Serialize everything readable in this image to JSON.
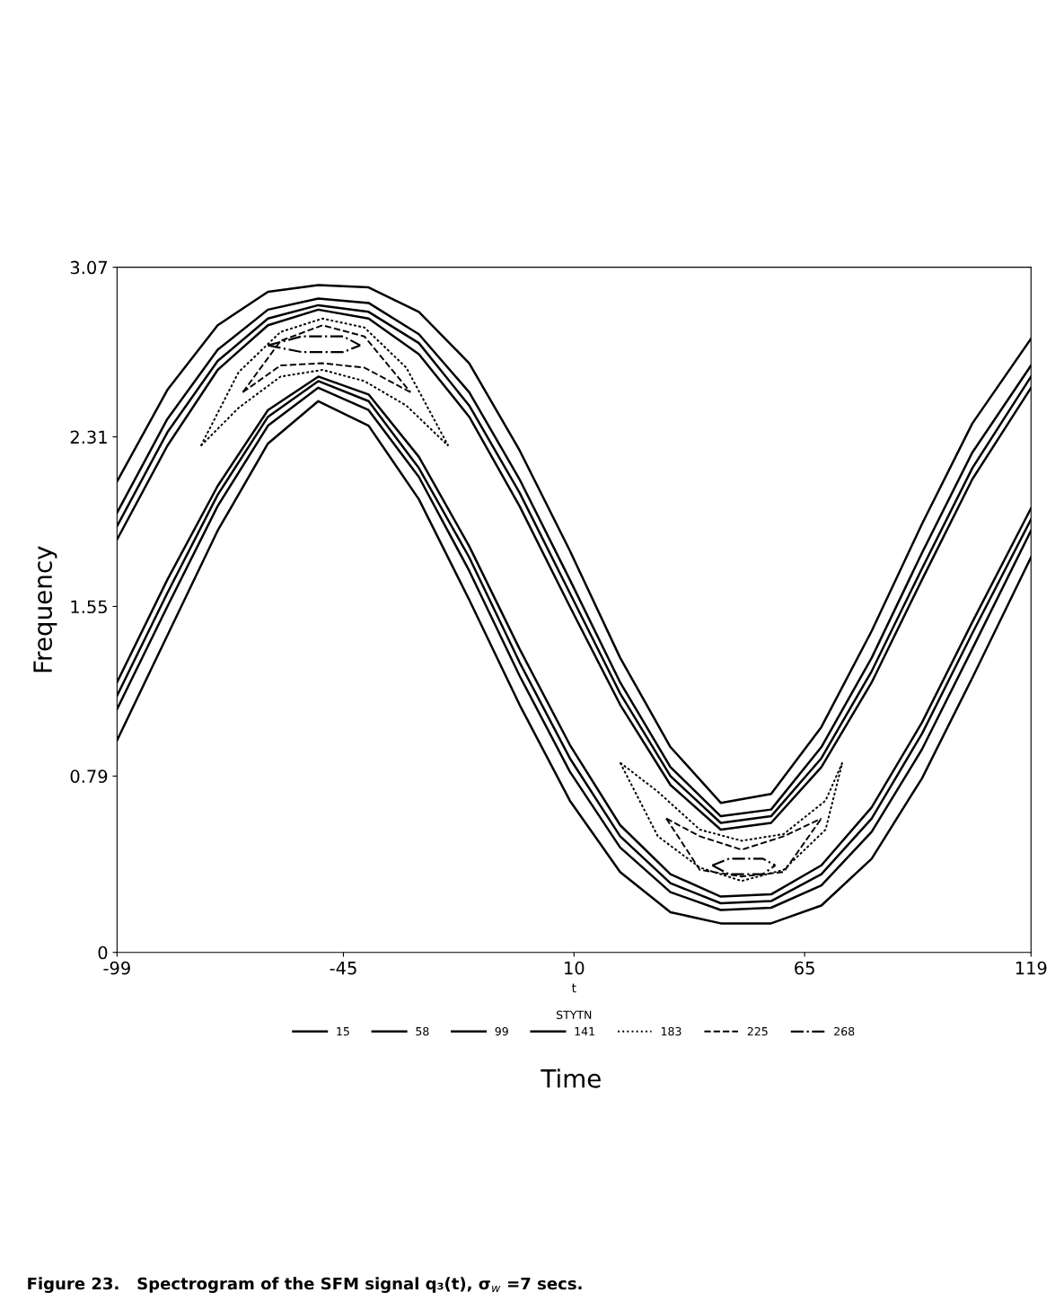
{
  "chart_data": {
    "type": "line",
    "ylabel": "Frequency",
    "xlabel": "t",
    "legend_title": "STYTN",
    "legend": "bottom",
    "grid": false,
    "xlim": [
      -99,
      119
    ],
    "xticks": [
      -99,
      -45,
      10,
      65,
      119
    ],
    "ylim": [
      0,
      3.07
    ],
    "yticks": [
      0,
      0.79,
      1.55,
      2.31,
      3.07
    ],
    "annotations": [
      "Time",
      "Figure 23.   Spectrogram of the SFM signal q₃(t), σ$_{w}$ =7 secs."
    ],
    "x": [
      -99,
      -87,
      -75,
      -63,
      -51,
      -39,
      -27,
      -15,
      -3,
      9,
      21,
      33,
      45,
      57,
      69,
      81,
      93,
      105,
      119
    ],
    "series": [
      {
        "name": "15",
        "color": "#000000",
        "line_style": "solid",
        "values": [
          2.11,
          2.52,
          2.81,
          2.96,
          2.99,
          2.98,
          2.87,
          2.64,
          2.25,
          1.8,
          1.32,
          0.92,
          0.67,
          0.71,
          1.01,
          1.44,
          1.92,
          2.37,
          2.75
        ]
      },
      {
        "color": "#000000",
        "line_style": "solid",
        "values": [
          0.95,
          1.42,
          1.89,
          2.28,
          2.47,
          2.36,
          2.03,
          1.58,
          1.11,
          0.68,
          0.36,
          0.18,
          0.13,
          0.13,
          0.21,
          0.42,
          0.78,
          1.23,
          1.77
        ]
      },
      {
        "name": "58",
        "color": "#000000",
        "line_style": "solid",
        "values": [
          1.97,
          2.39,
          2.7,
          2.88,
          2.93,
          2.91,
          2.77,
          2.51,
          2.12,
          1.67,
          1.21,
          0.83,
          0.61,
          0.64,
          0.92,
          1.32,
          1.79,
          2.24,
          2.63
        ]
      },
      {
        "color": "#000000",
        "line_style": "solid",
        "values": [
          1.09,
          1.55,
          2.0,
          2.36,
          2.53,
          2.43,
          2.13,
          1.71,
          1.24,
          0.81,
          0.47,
          0.27,
          0.19,
          0.2,
          0.3,
          0.54,
          0.91,
          1.36,
          1.89
        ]
      },
      {
        "name": "99",
        "color": "#000000",
        "line_style": "solid",
        "values": [
          1.91,
          2.33,
          2.65,
          2.84,
          2.9,
          2.87,
          2.73,
          2.45,
          2.06,
          1.61,
          1.16,
          0.79,
          0.58,
          0.61,
          0.87,
          1.26,
          1.72,
          2.17,
          2.58
        ]
      },
      {
        "color": "#000000",
        "line_style": "solid",
        "values": [
          1.15,
          1.61,
          2.05,
          2.4,
          2.56,
          2.47,
          2.17,
          1.77,
          1.3,
          0.87,
          0.52,
          0.31,
          0.22,
          0.23,
          0.35,
          0.6,
          0.98,
          1.43,
          1.94
        ]
      },
      {
        "name": "141",
        "color": "#000000",
        "line_style": "solid",
        "values": [
          1.85,
          2.27,
          2.61,
          2.81,
          2.88,
          2.84,
          2.68,
          2.4,
          2.0,
          1.55,
          1.11,
          0.75,
          0.55,
          0.58,
          0.83,
          1.21,
          1.67,
          2.12,
          2.53
        ]
      },
      {
        "color": "#000000",
        "line_style": "solid",
        "values": [
          1.21,
          1.67,
          2.09,
          2.43,
          2.58,
          2.5,
          2.22,
          1.82,
          1.36,
          0.93,
          0.57,
          0.35,
          0.25,
          0.26,
          0.39,
          0.65,
          1.03,
          1.48,
          1.99
        ]
      },
      {
        "name": "183",
        "color": "#000000",
        "line_style": "dotted",
        "x": [
          -79,
          -70,
          -60,
          -50,
          -40,
          -30,
          -20
        ],
        "values": [
          2.27,
          2.6,
          2.78,
          2.84,
          2.8,
          2.62,
          2.27
        ]
      },
      {
        "color": "#000000",
        "line_style": "dotted",
        "x": [
          -79,
          -70,
          -60,
          -50,
          -40,
          -30,
          -20
        ],
        "values": [
          2.27,
          2.44,
          2.58,
          2.61,
          2.56,
          2.45,
          2.27
        ]
      },
      {
        "color": "#000000",
        "line_style": "dotted",
        "x": [
          21,
          30,
          40,
          50,
          60,
          70,
          74
        ],
        "values": [
          0.85,
          0.72,
          0.55,
          0.5,
          0.53,
          0.68,
          0.85
        ]
      },
      {
        "color": "#000000",
        "line_style": "dotted",
        "x": [
          21,
          30,
          40,
          50,
          60,
          70,
          74
        ],
        "values": [
          0.85,
          0.52,
          0.38,
          0.32,
          0.37,
          0.55,
          0.85
        ]
      },
      {
        "name": "225",
        "color": "#000000",
        "line_style": "dashed",
        "x": [
          -69,
          -60,
          -50,
          -40,
          -29
        ],
        "values": [
          2.51,
          2.74,
          2.81,
          2.76,
          2.51
        ]
      },
      {
        "color": "#000000",
        "line_style": "dashed",
        "x": [
          -69,
          -60,
          -50,
          -40,
          -29
        ],
        "values": [
          2.51,
          2.63,
          2.64,
          2.62,
          2.51
        ]
      },
      {
        "color": "#000000",
        "line_style": "dashed",
        "x": [
          32,
          40,
          50,
          60,
          69
        ],
        "values": [
          0.6,
          0.52,
          0.46,
          0.52,
          0.6
        ]
      },
      {
        "color": "#000000",
        "line_style": "dashed",
        "x": [
          32,
          40,
          50,
          60,
          69
        ],
        "values": [
          0.6,
          0.37,
          0.34,
          0.36,
          0.6
        ]
      },
      {
        "name": "268",
        "color": "#000000",
        "line_style": "dashdot",
        "x": [
          -63,
          -55,
          -45,
          -41
        ],
        "values": [
          2.72,
          2.76,
          2.76,
          2.72
        ]
      },
      {
        "color": "#000000",
        "line_style": "dashdot",
        "x": [
          -63,
          -55,
          -45,
          -41
        ],
        "values": [
          2.72,
          2.69,
          2.69,
          2.72
        ]
      },
      {
        "color": "#000000",
        "line_style": "dashdot",
        "x": [
          43,
          47,
          55,
          58
        ],
        "values": [
          0.39,
          0.42,
          0.42,
          0.39
        ]
      },
      {
        "color": "#000000",
        "line_style": "dashdot",
        "x": [
          43,
          47,
          55,
          58
        ],
        "values": [
          0.39,
          0.35,
          0.35,
          0.39
        ]
      }
    ]
  }
}
